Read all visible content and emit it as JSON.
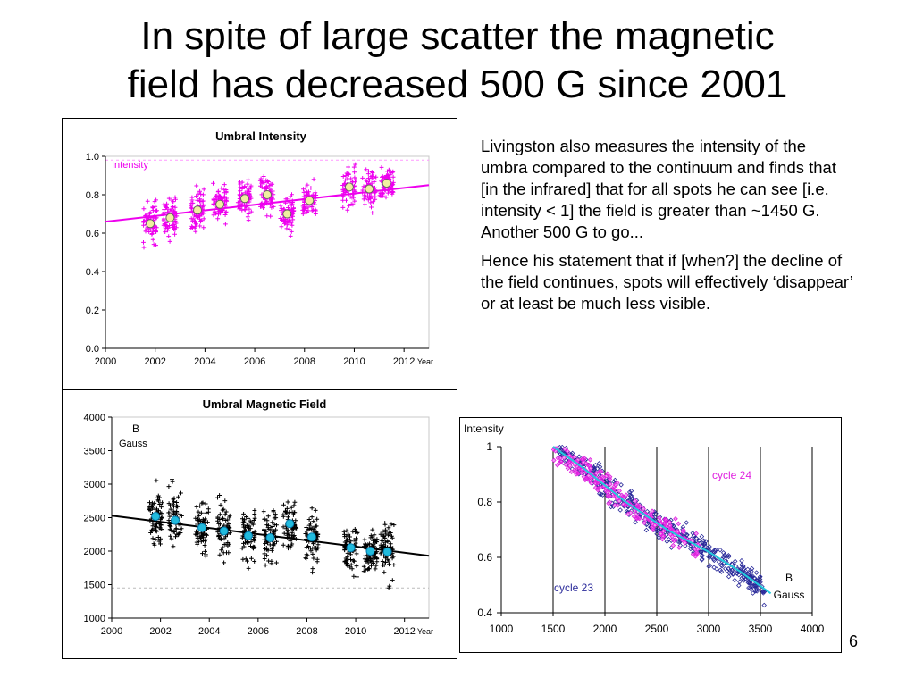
{
  "slide": {
    "title_line1": "In spite of large scatter the magnetic",
    "title_line2": "field has decreased 500 G since 2001",
    "paragraph1": "Livingston also measures the intensity of the umbra compared to the continuum and finds that [in the infrared] that for all spots he can see [i.e. intensity < 1] the field is greater than ~1450 G. Another 500 G to go...",
    "paragraph2": "Hence his statement that if [when?] the decline of the field continues, spots will effectively ‘disappear’ or at least be much less visible.",
    "slide_number": "6"
  },
  "chart_data": [
    {
      "type": "scatter",
      "title": "Umbral Intensity",
      "series_label": "Intensity",
      "xlabel": "Year",
      "ylabel": "",
      "xlim": [
        2000,
        2013
      ],
      "ylim": [
        0.0,
        1.0
      ],
      "xticks": [
        "2000",
        "2002",
        "2004",
        "2006",
        "2008",
        "2010",
        "2012"
      ],
      "yticks": [
        "0.0",
        "0.2",
        "0.4",
        "0.6",
        "0.8",
        "1.0"
      ],
      "color": "#ee00ee",
      "reference_line": 0.98,
      "trend": [
        [
          2000,
          0.66
        ],
        [
          2013,
          0.85
        ]
      ],
      "means": [
        [
          2001.8,
          0.65
        ],
        [
          2002.6,
          0.68
        ],
        [
          2003.7,
          0.72
        ],
        [
          2004.6,
          0.75
        ],
        [
          2005.6,
          0.78
        ],
        [
          2006.5,
          0.8
        ],
        [
          2007.3,
          0.7
        ],
        [
          2008.2,
          0.77
        ],
        [
          2009.8,
          0.84
        ],
        [
          2010.6,
          0.83
        ],
        [
          2011.3,
          0.86
        ]
      ]
    },
    {
      "type": "scatter",
      "title": "Umbral Magnetic Field",
      "series_label": "B",
      "series_unit": "Gauss",
      "xlabel": "Year",
      "ylabel": "",
      "xlim": [
        2000,
        2013
      ],
      "ylim": [
        1000,
        4000
      ],
      "xticks": [
        "2000",
        "2002",
        "2004",
        "2006",
        "2008",
        "2010",
        "2012"
      ],
      "yticks": [
        "1000",
        "1500",
        "2000",
        "2500",
        "3000",
        "3500",
        "4000"
      ],
      "color": "#000000",
      "reference_line": 1450,
      "trend": [
        [
          2000,
          2530
        ],
        [
          2013,
          1930
        ]
      ],
      "means": [
        [
          2001.8,
          2520
        ],
        [
          2002.6,
          2460
        ],
        [
          2003.7,
          2350
        ],
        [
          2004.6,
          2300
        ],
        [
          2005.6,
          2230
        ],
        [
          2006.5,
          2200
        ],
        [
          2007.3,
          2410
        ],
        [
          2008.2,
          2210
        ],
        [
          2009.8,
          2050
        ],
        [
          2010.6,
          2000
        ],
        [
          2011.3,
          1990
        ]
      ]
    },
    {
      "type": "scatter",
      "title": "",
      "ylabel": "Intensity",
      "xlabel_top": "B",
      "xlabel_bottom": "Gauss",
      "xlim": [
        1000,
        4000
      ],
      "ylim": [
        0.4,
        1.0
      ],
      "xticks": [
        "1000",
        "1500",
        "2000",
        "2500",
        "3000",
        "3500",
        "4000"
      ],
      "yticks": [
        "0.4",
        "0.6",
        "0.8",
        "1"
      ],
      "series": [
        {
          "name": "cycle 23",
          "color": "#2a2a9a"
        },
        {
          "name": "cycle 24",
          "color": "#e020e0"
        }
      ],
      "fit_line": [
        [
          1500,
          1.0
        ],
        [
          1800,
          0.92
        ],
        [
          2200,
          0.8
        ],
        [
          2600,
          0.7
        ],
        [
          3000,
          0.62
        ],
        [
          3300,
          0.55
        ],
        [
          3600,
          0.47
        ]
      ],
      "fit_color": "#22ccdd"
    }
  ]
}
